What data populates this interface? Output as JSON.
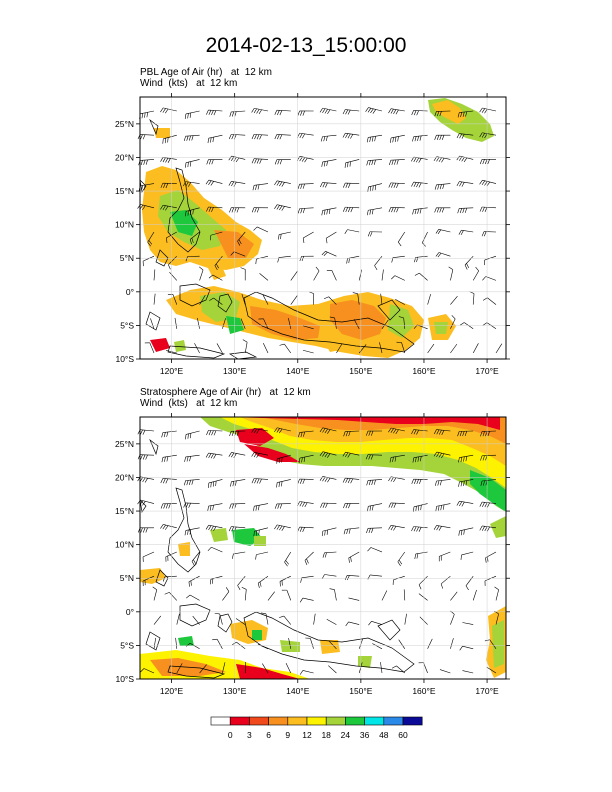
{
  "title": "2014-02-13_15:00:00",
  "panels": [
    {
      "name": "pbl",
      "field_label": "PBL Age of Air",
      "field_units": "(hr)",
      "level": "at  12 km",
      "wind_label": "Wind",
      "wind_units": "(kts)",
      "wind_level": "at  12 km"
    },
    {
      "name": "stratosphere",
      "field_label": "Stratosphere Age of Air",
      "field_units": "(hr)",
      "level": "at  12 km",
      "wind_label": "Wind",
      "wind_units": "(kts)",
      "wind_level": "at  12 km"
    }
  ],
  "map": {
    "lon_range": [
      115,
      173
    ],
    "lat_range": [
      -10,
      29
    ],
    "lon_ticks": [
      "120°E",
      "130°E",
      "140°E",
      "150°E",
      "160°E",
      "170°E"
    ],
    "lat_ticks": [
      "25°N",
      "20°N",
      "15°N",
      "10°N",
      "5°N",
      "0°",
      "5°S",
      "10°S"
    ],
    "grid": true
  },
  "colorbar": {
    "labels": [
      "0",
      "3",
      "6",
      "9",
      "12",
      "18",
      "24",
      "36",
      "48",
      "60"
    ],
    "colors": [
      "#ffffff",
      "#e8001c",
      "#f04a1c",
      "#f7901e",
      "#fbbd20",
      "#fdf200",
      "#a4d43a",
      "#1ec83c",
      "#00e5e5",
      "#2b89e8",
      "#0a0a96"
    ]
  }
}
